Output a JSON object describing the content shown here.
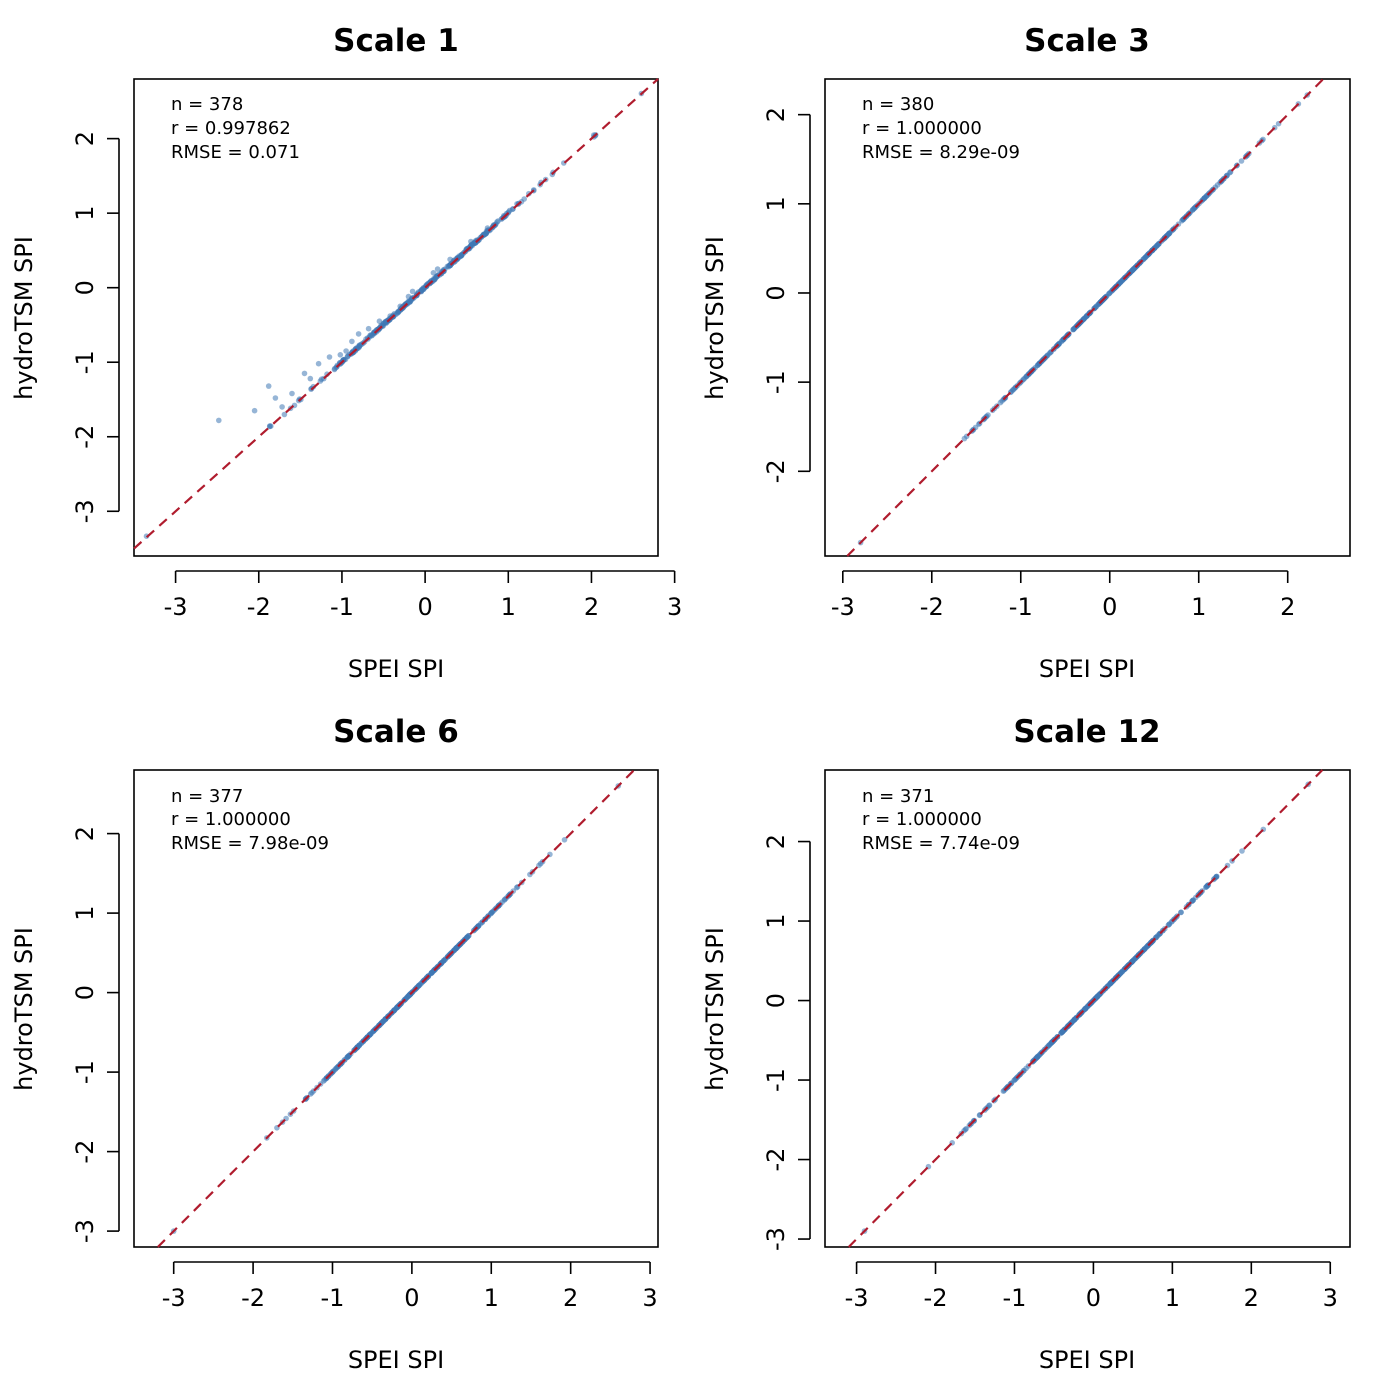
{
  "colors": {
    "points": "#3f78b5",
    "reference_line": "#b01c2e",
    "frame": "#000000"
  },
  "chart_data": [
    {
      "type": "scatter",
      "title": "Scale 1",
      "xlabel": "SPEI SPI",
      "ylabel": "hydroTSM SPI",
      "xlim": [
        -3.5,
        2.8
      ],
      "ylim": [
        -3.6,
        2.8
      ],
      "xticks": [
        "-3",
        "-2",
        "-1",
        "0",
        "1",
        "2",
        "3"
      ],
      "yticks": [
        "-3",
        "-2",
        "-1",
        "0",
        "1",
        "2"
      ],
      "stats": [
        "n = 378",
        "r = 0.997862",
        "RMSE = 0.071"
      ],
      "reference_line": "1:1",
      "fit_range": [
        -3.35,
        2.6
      ],
      "outliers": [
        [
          -2.48,
          -1.78
        ],
        [
          -2.05,
          -1.65
        ],
        [
          -1.88,
          -1.32
        ],
        [
          -1.8,
          -1.48
        ],
        [
          -1.72,
          -1.6
        ],
        [
          -1.6,
          -1.42
        ],
        [
          -1.45,
          -1.15
        ],
        [
          -1.38,
          -1.22
        ],
        [
          -1.28,
          -1.02
        ],
        [
          -1.15,
          -0.93
        ],
        [
          -1.02,
          -0.9
        ],
        [
          -0.95,
          -0.85
        ],
        [
          -0.88,
          -0.72
        ],
        [
          -0.8,
          -0.62
        ],
        [
          -0.68,
          -0.55
        ],
        [
          -0.55,
          -0.45
        ],
        [
          -0.42,
          -0.38
        ],
        [
          -0.3,
          -0.25
        ],
        [
          -0.2,
          -0.12
        ],
        [
          -0.15,
          -0.05
        ],
        [
          0.1,
          0.2
        ],
        [
          0.15,
          0.25
        ],
        [
          0.3,
          0.38
        ],
        [
          0.55,
          0.62
        ],
        [
          0.75,
          0.8
        ]
      ]
    },
    {
      "type": "scatter",
      "title": "Scale 3",
      "xlabel": "SPEI SPI",
      "ylabel": "hydroTSM SPI",
      "xlim": [
        -3.2,
        2.7
      ],
      "ylim": [
        -2.95,
        2.4
      ],
      "xticks": [
        "-3",
        "-2",
        "-1",
        "0",
        "1",
        "2"
      ],
      "yticks": [
        "-2",
        "-1",
        "0",
        "1",
        "2"
      ],
      "stats": [
        "n = 380",
        "r = 1.000000",
        "RMSE = 8.29e-09"
      ],
      "reference_line": "1:1",
      "fit_range": [
        -2.8,
        2.22
      ],
      "outliers": []
    },
    {
      "type": "scatter",
      "title": "Scale 6",
      "xlabel": "SPEI SPI",
      "ylabel": "hydroTSM SPI",
      "xlim": [
        -3.5,
        3.1
      ],
      "ylim": [
        -3.2,
        2.8
      ],
      "xticks": [
        "-3",
        "-2",
        "-1",
        "0",
        "1",
        "2",
        "3"
      ],
      "yticks": [
        "-3",
        "-2",
        "-1",
        "0",
        "1",
        "2"
      ],
      "stats": [
        "n = 377",
        "r = 1.000000",
        "RMSE = 7.98e-09"
      ],
      "reference_line": "1:1",
      "fit_range": [
        -3.0,
        2.6
      ],
      "outliers": []
    },
    {
      "type": "scatter",
      "title": "Scale 12",
      "xlabel": "SPEI SPI",
      "ylabel": "hydroTSM SPI",
      "xlim": [
        -3.4,
        3.25
      ],
      "ylim": [
        -3.1,
        2.9
      ],
      "xticks": [
        "-3",
        "-2",
        "-1",
        "0",
        "1",
        "2",
        "3"
      ],
      "yticks": [
        "-3",
        "-2",
        "-1",
        "0",
        "1",
        "2"
      ],
      "stats": [
        "n = 371",
        "r = 1.000000",
        "RMSE = 7.74e-09"
      ],
      "reference_line": "1:1",
      "fit_range": [
        -2.9,
        2.72
      ],
      "outliers": []
    }
  ]
}
